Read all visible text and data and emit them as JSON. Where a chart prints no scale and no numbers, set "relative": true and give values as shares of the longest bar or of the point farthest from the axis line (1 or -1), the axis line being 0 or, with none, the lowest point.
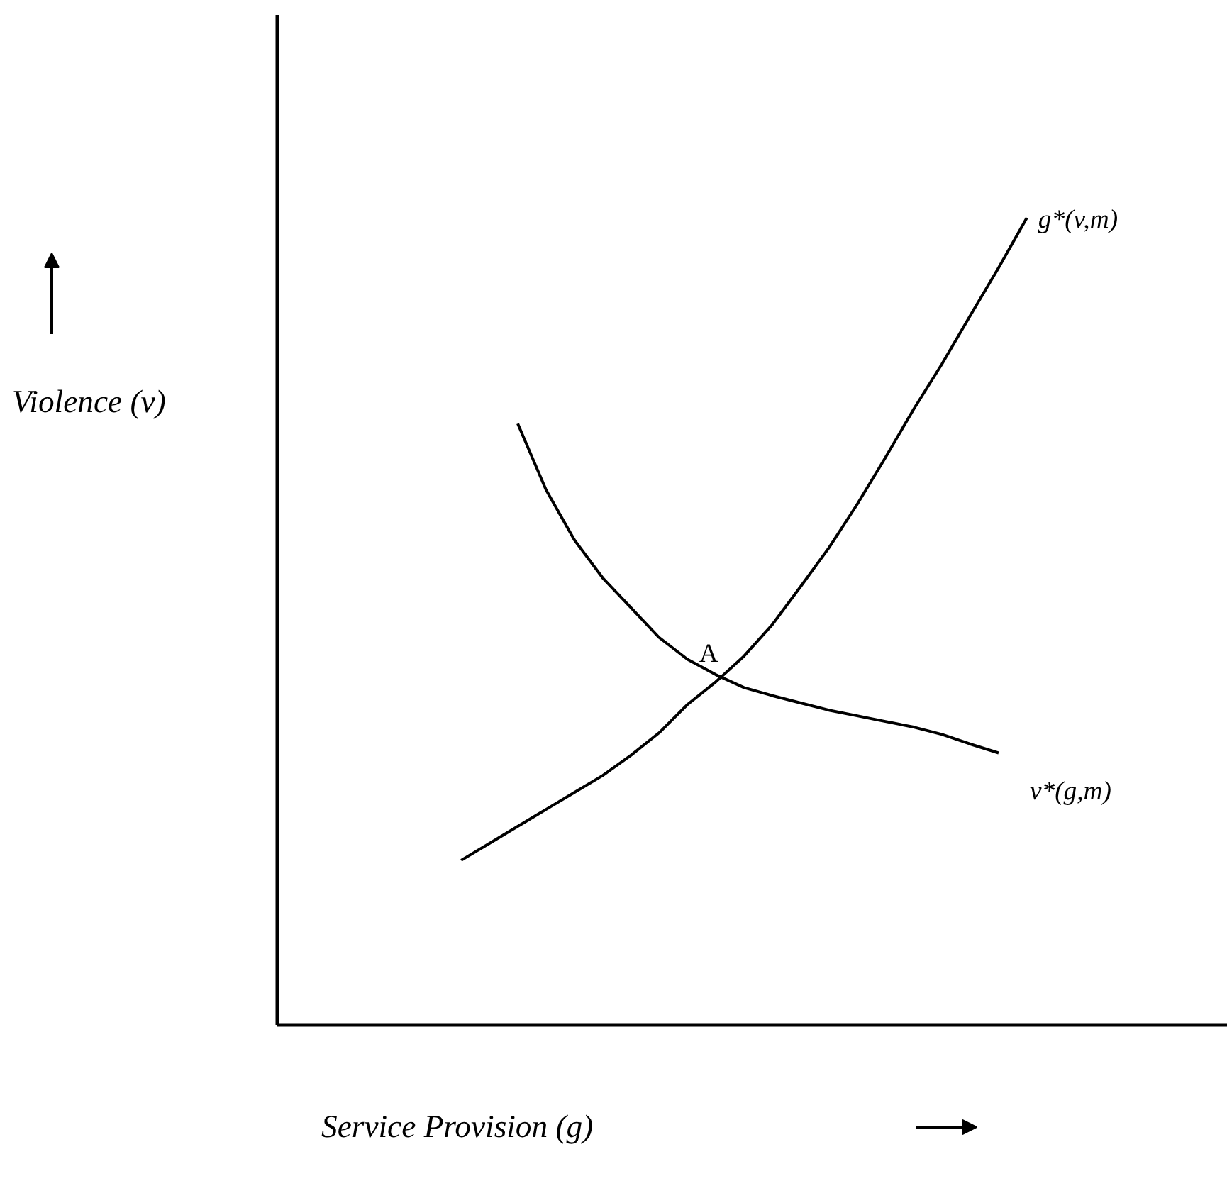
{
  "chart_data": {
    "type": "line",
    "relative": true,
    "xlabel": "Service Provision (g)",
    "ylabel": "Violence (v)",
    "line_style": "solid",
    "categories": [
      null,
      null,
      null,
      null,
      null,
      null,
      null,
      null,
      null,
      null,
      null,
      null,
      null,
      null,
      null,
      null,
      null,
      null,
      null,
      null,
      null,
      null,
      null,
      null,
      null,
      null,
      null,
      null,
      null,
      null,
      null,
      null,
      null
    ],
    "series": [
      {
        "name": "g*(v,m)",
        "color": "#000000",
        "values": [
          null,
          null,
          null,
          null,
          null,
          null,
          0.204,
          0.225,
          0.246,
          0.267,
          0.288,
          0.309,
          0.334,
          0.362,
          0.397,
          0.425,
          0.457,
          0.496,
          0.543,
          0.591,
          0.645,
          0.703,
          0.763,
          0.819,
          0.879,
          0.938,
          1.0,
          null,
          null,
          null,
          null,
          null,
          null
        ]
      },
      {
        "name": "v*(g,m)",
        "color": "#000000",
        "values": [
          null,
          null,
          null,
          null,
          null,
          null,
          null,
          null,
          0.745,
          0.663,
          0.601,
          0.554,
          0.517,
          0.48,
          0.453,
          0.434,
          0.418,
          0.408,
          0.399,
          0.39,
          0.383,
          0.376,
          0.369,
          0.36,
          0.348,
          0.337,
          null,
          null,
          null,
          null,
          null,
          null,
          null
        ]
      }
    ],
    "annotations": [
      "A"
    ]
  }
}
